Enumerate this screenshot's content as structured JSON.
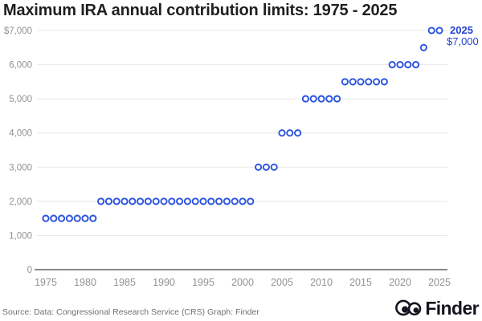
{
  "title": "Maximum IRA annual contribution limits: 1975 - 2025",
  "annotation": {
    "year": "2025",
    "value": "$7,000"
  },
  "footer": {
    "source": "Source: Data: Congressional Research Service (CRS) Graph: Finder",
    "brand": "Finder"
  },
  "colors": {
    "accent_blue": "#2b52dc",
    "annotation_blue": "#2443cf",
    "brand_dark": "#15151f",
    "grid": "#e7e7e7",
    "axis": "#8a8a8a",
    "tick_text": "#929292",
    "title_text": "#1f1f1f"
  },
  "chart_data": {
    "type": "scatter",
    "title": "Maximum IRA annual contribution limits: 1975 - 2025",
    "xlabel": "",
    "ylabel": "",
    "xlim": [
      1975,
      2025
    ],
    "ylim": [
      0,
      7000
    ],
    "grid": true,
    "legend": false,
    "marker": "open-circle",
    "marker_color": "#2b52dc",
    "x": [
      1975,
      1976,
      1977,
      1978,
      1979,
      1980,
      1981,
      1982,
      1983,
      1984,
      1985,
      1986,
      1987,
      1988,
      1989,
      1990,
      1991,
      1992,
      1993,
      1994,
      1995,
      1996,
      1997,
      1998,
      1999,
      2000,
      2001,
      2002,
      2003,
      2004,
      2005,
      2006,
      2007,
      2008,
      2009,
      2010,
      2011,
      2012,
      2013,
      2014,
      2015,
      2016,
      2017,
      2018,
      2019,
      2020,
      2021,
      2022,
      2023,
      2024,
      2025
    ],
    "y": [
      1500,
      1500,
      1500,
      1500,
      1500,
      1500,
      1500,
      2000,
      2000,
      2000,
      2000,
      2000,
      2000,
      2000,
      2000,
      2000,
      2000,
      2000,
      2000,
      2000,
      2000,
      2000,
      2000,
      2000,
      2000,
      2000,
      2000,
      3000,
      3000,
      3000,
      4000,
      4000,
      4000,
      5000,
      5000,
      5000,
      5000,
      5000,
      5500,
      5500,
      5500,
      5500,
      5500,
      5500,
      6000,
      6000,
      6000,
      6000,
      6500,
      7000,
      7000
    ],
    "x_ticks": [
      1975,
      1980,
      1985,
      1990,
      1995,
      2000,
      2005,
      2010,
      2015,
      2020,
      2025
    ],
    "y_ticks": [
      {
        "value": 7000,
        "label": "$7,000"
      },
      {
        "value": 6000,
        "label": "6,000"
      },
      {
        "value": 5000,
        "label": "5,000"
      },
      {
        "value": 4000,
        "label": "4,000"
      },
      {
        "value": 3000,
        "label": "3,000"
      },
      {
        "value": 2000,
        "label": "2,000"
      },
      {
        "value": 1000,
        "label": "1,000"
      },
      {
        "value": 0,
        "label": "0"
      }
    ]
  }
}
